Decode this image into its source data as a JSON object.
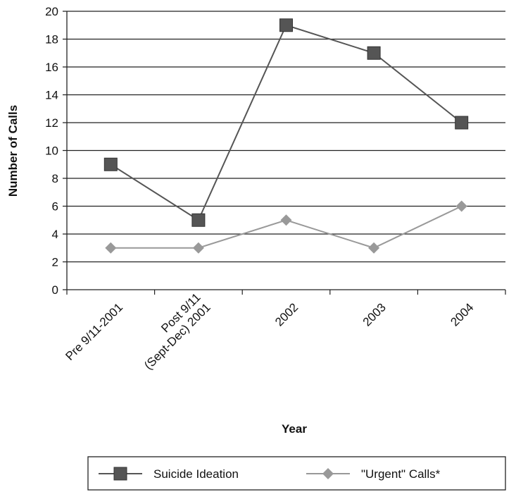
{
  "chart_data": {
    "type": "line",
    "categories": [
      "Pre 9/11-2001",
      [
        "Post 9/11",
        "(Sept-Dec) 2001"
      ],
      "2002",
      "2003",
      "2004"
    ],
    "series": [
      {
        "name": "Suicide Ideation",
        "color": "#555555",
        "marker": "square",
        "values": [
          9,
          5,
          19,
          17,
          12
        ]
      },
      {
        "name": "\"Urgent\" Calls*",
        "color": "#999999",
        "marker": "diamond",
        "values": [
          3,
          3,
          5,
          3,
          6
        ]
      }
    ],
    "xlabel": "Year",
    "ylabel": "Number of Calls",
    "ylim": [
      0,
      20
    ],
    "yticks": [
      0,
      2,
      4,
      6,
      8,
      10,
      12,
      14,
      16,
      18,
      20
    ],
    "grid": true,
    "legend": "bottom"
  }
}
